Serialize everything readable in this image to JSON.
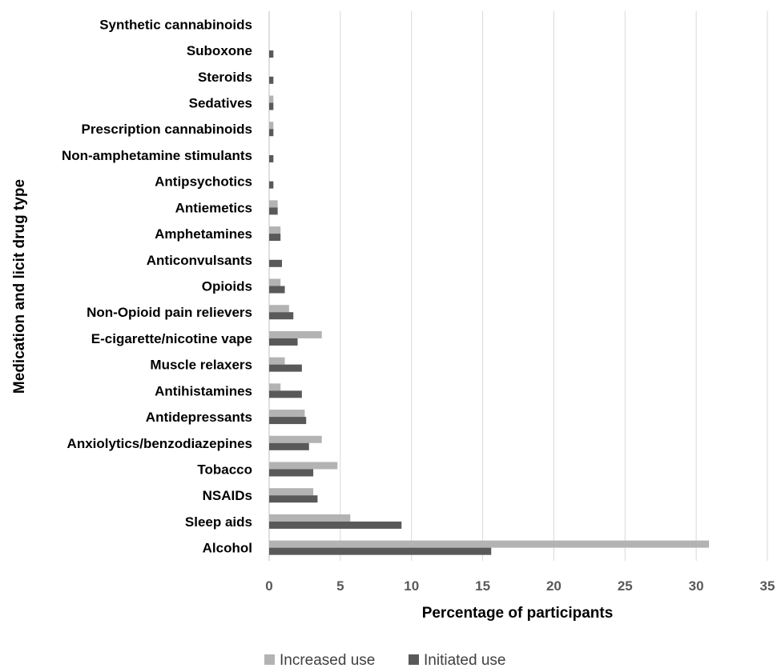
{
  "chart_data": {
    "type": "bar",
    "orientation": "horizontal",
    "categories": [
      "Alcohol",
      "Sleep aids",
      "NSAIDs",
      "Tobacco",
      "Anxiolytics/benzodiazepines",
      "Antidepressants",
      "Antihistamines",
      "Muscle relaxers",
      "E-cigarette/nicotine vape",
      "Non-Opioid pain relievers",
      "Opioids",
      "Anticonvulsants",
      "Amphetamines",
      "Antiemetics",
      "Antipsychotics",
      "Non-amphetamine stimulants",
      "Prescription cannabinoids",
      "Sedatives",
      "Steroids",
      "Suboxone",
      "Synthetic cannabinoids"
    ],
    "series": [
      {
        "name": "Increased use",
        "color": "#b3b3b3",
        "values": [
          30.9,
          5.7,
          3.1,
          4.8,
          3.7,
          2.5,
          0.8,
          1.1,
          3.7,
          1.4,
          0.8,
          0,
          0.8,
          0.6,
          0,
          0,
          0.3,
          0.3,
          0,
          0,
          0
        ]
      },
      {
        "name": "Initiated use",
        "color": "#595959",
        "values": [
          15.6,
          9.3,
          3.4,
          3.1,
          2.8,
          2.6,
          2.3,
          2.3,
          2.0,
          1.7,
          1.1,
          0.9,
          0.8,
          0.6,
          0.3,
          0.3,
          0.3,
          0.3,
          0.3,
          0.3,
          0
        ]
      }
    ],
    "xlabel": "Percentage of participants",
    "ylabel": "Medication and licit drug type",
    "xlim": [
      0,
      35
    ],
    "xticks": [
      0,
      5,
      10,
      15,
      20,
      25,
      30,
      35
    ],
    "grid": "vertical",
    "legend_position": "bottom"
  }
}
